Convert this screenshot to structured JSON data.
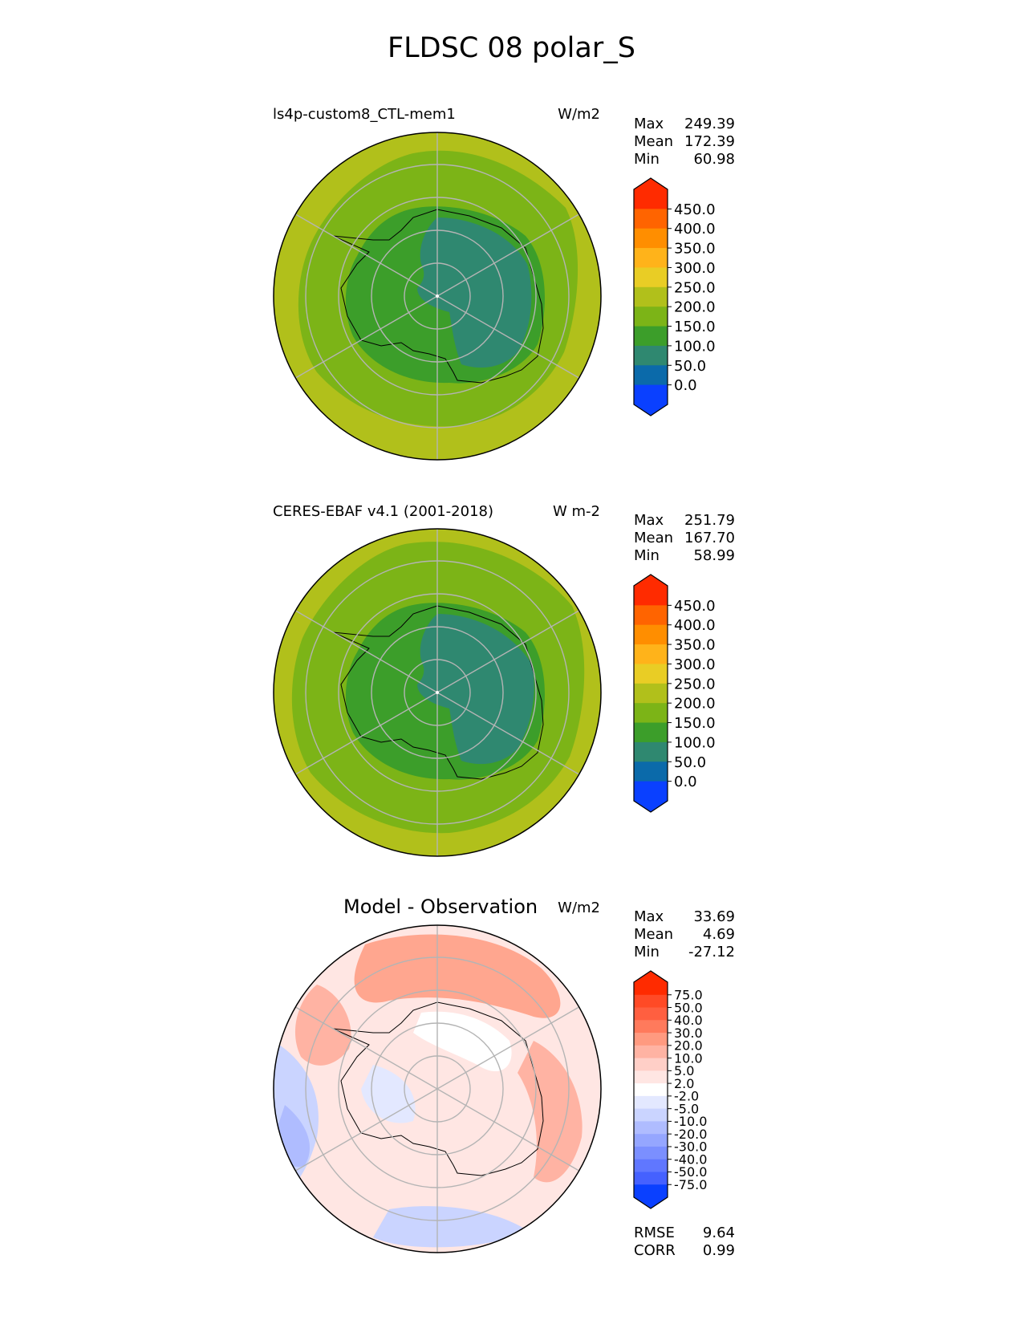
{
  "page": {
    "title": "FLDSC 08 polar_S"
  },
  "panels": [
    {
      "title": "ls4p-custom8_CTL-mem1",
      "units": "W/m2",
      "stats": [
        {
          "label": "Max",
          "value": "249.39"
        },
        {
          "label": "Mean",
          "value": "172.39"
        },
        {
          "label": "Min",
          "value": "60.98"
        }
      ],
      "colorbar": {
        "levels": [
          "450.0",
          "400.0",
          "350.0",
          "300.0",
          "250.0",
          "200.0",
          "150.0",
          "100.0",
          "50.0",
          "0.0"
        ],
        "colors": [
          "#ff2b00",
          "#ff6400",
          "#ff8e00",
          "#ffb31a",
          "#e9cd25",
          "#b1c01b",
          "#7cb417",
          "#3c9e2a",
          "#2f8870",
          "#0b6aaa",
          "#0a40ff"
        ]
      }
    },
    {
      "title": "CERES-EBAF v4.1 (2001-2018)",
      "units": "W m-2",
      "stats": [
        {
          "label": "Max",
          "value": "251.79"
        },
        {
          "label": "Mean",
          "value": "167.70"
        },
        {
          "label": "Min",
          "value": "58.99"
        }
      ],
      "colorbar": {
        "levels": [
          "450.0",
          "400.0",
          "350.0",
          "300.0",
          "250.0",
          "200.0",
          "150.0",
          "100.0",
          "50.0",
          "0.0"
        ],
        "colors": [
          "#ff2b00",
          "#ff6400",
          "#ff8e00",
          "#ffb31a",
          "#e9cd25",
          "#b1c01b",
          "#7cb417",
          "#3c9e2a",
          "#2f8870",
          "#0b6aaa",
          "#0a40ff"
        ]
      }
    },
    {
      "title": "Model - Observation",
      "units": "W/m2",
      "stats": [
        {
          "label": "Max",
          "value": "33.69"
        },
        {
          "label": "Mean",
          "value": "4.69"
        },
        {
          "label": "Min",
          "value": "-27.12"
        }
      ],
      "extra_stats": [
        {
          "label": "RMSE",
          "value": "9.64"
        },
        {
          "label": "CORR",
          "value": "0.99"
        }
      ],
      "colorbar": {
        "levels": [
          "75.0",
          "50.0",
          "40.0",
          "30.0",
          "20.0",
          "10.0",
          "5.0",
          "2.0",
          "-2.0",
          "-5.0",
          "-10.0",
          "-20.0",
          "-30.0",
          "-40.0",
          "-50.0",
          "-75.0"
        ],
        "colors": [
          "#ff2b00",
          "#ff4a26",
          "#ff5f40",
          "#ff7a5c",
          "#ff9a80",
          "#ffb3a3",
          "#ffcfc7",
          "#ffe6e3",
          "#ffffff",
          "#e3e8ff",
          "#cad4ff",
          "#afbcff",
          "#95a6ff",
          "#7b8fff",
          "#6077ff",
          "#4561ff",
          "#0a40ff"
        ]
      }
    }
  ],
  "maps": {
    "ocean_outer": "#b1c01b",
    "ocean_inner": "#7cb417",
    "coast_band": "#3c9e2a",
    "plateau": "#2f8870",
    "diff_pos_strong": "#ff9a80",
    "diff_pos": "#ffcfc7",
    "diff_neg": "#cad4ff",
    "diff_neg_strong": "#afbcff",
    "gridline": "#b4b4b4"
  }
}
